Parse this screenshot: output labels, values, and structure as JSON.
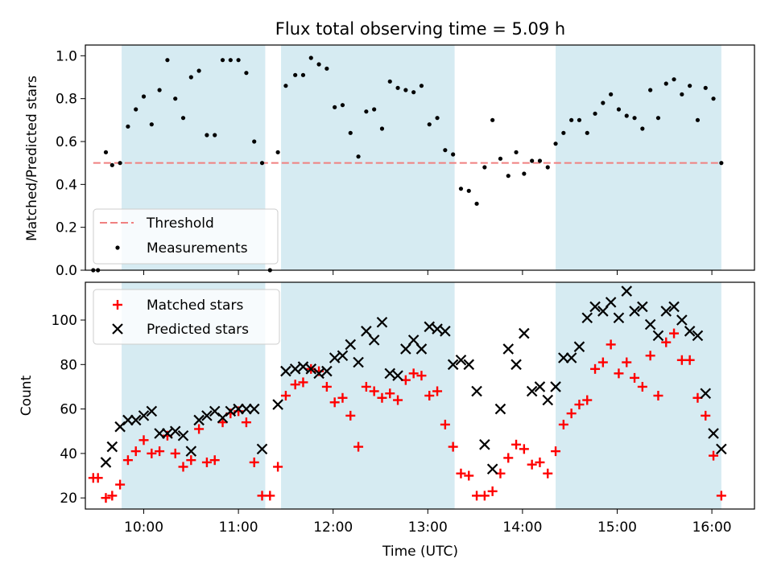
{
  "chart_data": [
    {
      "type": "scatter",
      "title": "Flux total observing time = 5.09 h",
      "xlabel": "",
      "ylabel": "Matched/Predicted stars",
      "xlim": [
        "09:23",
        "16:27"
      ],
      "ylim": [
        0,
        1.05
      ],
      "yticks": [
        0.0,
        0.2,
        0.4,
        0.6,
        0.8,
        1.0
      ],
      "ytick_labels": [
        "0.0",
        "0.2",
        "0.4",
        "0.6",
        "0.8",
        "1.0"
      ],
      "legend": {
        "placement": "lower-left",
        "threshold_label": "Threshold",
        "measurements_label": "Measurements"
      },
      "threshold": {
        "value": 0.5,
        "x_start": "09:28",
        "x_end": "16:06",
        "color": "#f08080"
      },
      "shaded_spans": [
        [
          "09:46",
          "11:17"
        ],
        [
          "11:27",
          "13:17"
        ],
        [
          "14:21",
          "16:06"
        ]
      ],
      "shade_color": "#add8e6",
      "series": [
        {
          "name": "Measurements",
          "color": "#000000",
          "x": [
            "09:28",
            "09:31",
            "09:36",
            "09:40",
            "09:45",
            "09:50",
            "09:55",
            "10:00",
            "10:05",
            "10:10",
            "10:15",
            "10:20",
            "10:25",
            "10:30",
            "10:35",
            "10:40",
            "10:45",
            "10:50",
            "10:55",
            "11:00",
            "11:05",
            "11:10",
            "11:15",
            "11:20",
            "11:25",
            "11:30",
            "11:36",
            "11:41",
            "11:46",
            "11:51",
            "11:56",
            "12:01",
            "12:06",
            "12:11",
            "12:16",
            "12:21",
            "12:26",
            "12:31",
            "12:36",
            "12:41",
            "12:46",
            "12:51",
            "12:56",
            "13:01",
            "13:06",
            "13:11",
            "13:16",
            "13:21",
            "13:26",
            "13:31",
            "13:36",
            "13:41",
            "13:46",
            "13:51",
            "13:56",
            "14:01",
            "14:06",
            "14:11",
            "14:16",
            "14:21",
            "14:26",
            "14:31",
            "14:36",
            "14:41",
            "14:46",
            "14:51",
            "14:56",
            "15:01",
            "15:06",
            "15:11",
            "15:16",
            "15:21",
            "15:26",
            "15:31",
            "15:36",
            "15:41",
            "15:46",
            "15:51",
            "15:56",
            "16:01",
            "16:06"
          ],
          "y": [
            0.0,
            0.0,
            0.55,
            0.49,
            0.5,
            0.67,
            0.75,
            0.81,
            0.68,
            0.84,
            0.98,
            0.8,
            0.71,
            0.9,
            0.93,
            0.63,
            0.63,
            0.98,
            0.98,
            0.98,
            0.92,
            0.6,
            0.5,
            0.0,
            0.55,
            0.86,
            0.91,
            0.91,
            0.99,
            0.96,
            0.94,
            0.76,
            0.77,
            0.64,
            0.53,
            0.74,
            0.75,
            0.66,
            0.88,
            0.85,
            0.84,
            0.83,
            0.86,
            0.68,
            0.71,
            0.56,
            0.54,
            0.38,
            0.37,
            0.31,
            0.48,
            0.7,
            0.52,
            0.44,
            0.55,
            0.45,
            0.51,
            0.51,
            0.48,
            0.59,
            0.64,
            0.7,
            0.7,
            0.64,
            0.73,
            0.78,
            0.82,
            0.75,
            0.72,
            0.71,
            0.66,
            0.84,
            0.71,
            0.87,
            0.89,
            0.82,
            0.86,
            0.7,
            0.85,
            0.8,
            0.5
          ]
        }
      ]
    },
    {
      "type": "scatter",
      "title": "",
      "xlabel": "Time (UTC)",
      "ylabel": "Count",
      "xlim": [
        "09:23",
        "16:27"
      ],
      "ylim": [
        15,
        117
      ],
      "yticks": [
        20,
        40,
        60,
        80,
        100
      ],
      "ytick_labels": [
        "20",
        "40",
        "60",
        "80",
        "100"
      ],
      "xticks": [
        "10:00",
        "11:00",
        "12:00",
        "13:00",
        "14:00",
        "15:00",
        "16:00"
      ],
      "legend": {
        "placement": "upper-left"
      },
      "shaded_spans": [
        [
          "09:46",
          "11:17"
        ],
        [
          "11:27",
          "13:17"
        ],
        [
          "14:21",
          "16:06"
        ]
      ],
      "shade_color": "#add8e6",
      "series": [
        {
          "name": "Matched stars",
          "marker": "plus",
          "color": "#ff0000",
          "x": [
            "09:28",
            "09:31",
            "09:36",
            "09:40",
            "09:45",
            "09:50",
            "09:55",
            "10:00",
            "10:05",
            "10:10",
            "10:15",
            "10:20",
            "10:25",
            "10:30",
            "10:35",
            "10:40",
            "10:45",
            "10:50",
            "10:55",
            "11:00",
            "11:05",
            "11:10",
            "11:15",
            "11:20",
            "11:25",
            "11:30",
            "11:36",
            "11:41",
            "11:46",
            "11:51",
            "11:56",
            "12:01",
            "12:06",
            "12:11",
            "12:16",
            "12:21",
            "12:26",
            "12:31",
            "12:36",
            "12:41",
            "12:46",
            "12:51",
            "12:56",
            "13:01",
            "13:06",
            "13:11",
            "13:16",
            "13:21",
            "13:26",
            "13:31",
            "13:36",
            "13:41",
            "13:46",
            "13:51",
            "13:56",
            "14:01",
            "14:06",
            "14:11",
            "14:16",
            "14:21",
            "14:26",
            "14:31",
            "14:36",
            "14:41",
            "14:46",
            "14:51",
            "14:56",
            "15:01",
            "15:06",
            "15:11",
            "15:16",
            "15:21",
            "15:26",
            "15:31",
            "15:36",
            "15:41",
            "15:46",
            "15:51",
            "15:56",
            "16:01",
            "16:06"
          ],
          "y": [
            29,
            29,
            20,
            21,
            26,
            37,
            41,
            46,
            40,
            41,
            48,
            40,
            34,
            37,
            51,
            36,
            37,
            54,
            58,
            59,
            54,
            36,
            21,
            21,
            34,
            66,
            71,
            72,
            78,
            77,
            70,
            63,
            65,
            57,
            43,
            70,
            68,
            65,
            67,
            64,
            73,
            76,
            75,
            66,
            68,
            53,
            43,
            31,
            30,
            21,
            21,
            23,
            31,
            38,
            44,
            42,
            35,
            36,
            31,
            41,
            53,
            58,
            62,
            64,
            78,
            81,
            89,
            76,
            81,
            74,
            70,
            84,
            66,
            90,
            94,
            82,
            82,
            65,
            57,
            39,
            21
          ]
        },
        {
          "name": "Predicted stars",
          "marker": "x",
          "color": "#000000",
          "x": [
            "09:36",
            "09:40",
            "09:45",
            "09:50",
            "09:55",
            "10:00",
            "10:05",
            "10:10",
            "10:15",
            "10:20",
            "10:25",
            "10:30",
            "10:35",
            "10:40",
            "10:45",
            "10:50",
            "10:55",
            "11:00",
            "11:05",
            "11:10",
            "11:15",
            "11:25",
            "11:30",
            "11:36",
            "11:41",
            "11:46",
            "11:51",
            "11:56",
            "12:01",
            "12:06",
            "12:11",
            "12:16",
            "12:21",
            "12:26",
            "12:31",
            "12:36",
            "12:41",
            "12:46",
            "12:51",
            "12:56",
            "13:01",
            "13:06",
            "13:11",
            "13:16",
            "13:21",
            "13:26",
            "13:31",
            "13:36",
            "13:41",
            "13:46",
            "13:51",
            "13:56",
            "14:01",
            "14:06",
            "14:11",
            "14:16",
            "14:21",
            "14:26",
            "14:31",
            "14:36",
            "14:41",
            "14:46",
            "14:51",
            "14:56",
            "15:01",
            "15:06",
            "15:11",
            "15:16",
            "15:21",
            "15:26",
            "15:31",
            "15:36",
            "15:41",
            "15:46",
            "15:51",
            "15:56",
            "16:01",
            "16:06"
          ],
          "y": [
            36,
            43,
            52,
            55,
            55,
            57,
            59,
            49,
            49,
            50,
            48,
            41,
            55,
            57,
            59,
            56,
            59,
            60,
            60,
            60,
            42,
            62,
            77,
            78,
            79,
            78,
            76,
            77,
            83,
            84,
            89,
            81,
            95,
            91,
            99,
            76,
            75,
            87,
            91,
            87,
            97,
            96,
            95,
            80,
            82,
            80,
            68,
            44,
            33,
            60,
            87,
            80,
            94,
            68,
            70,
            64,
            70,
            83,
            83,
            88,
            101,
            106,
            104,
            108,
            101,
            113,
            104,
            106,
            98,
            93,
            104,
            106,
            100,
            95,
            93,
            67,
            49,
            42
          ]
        }
      ]
    }
  ]
}
